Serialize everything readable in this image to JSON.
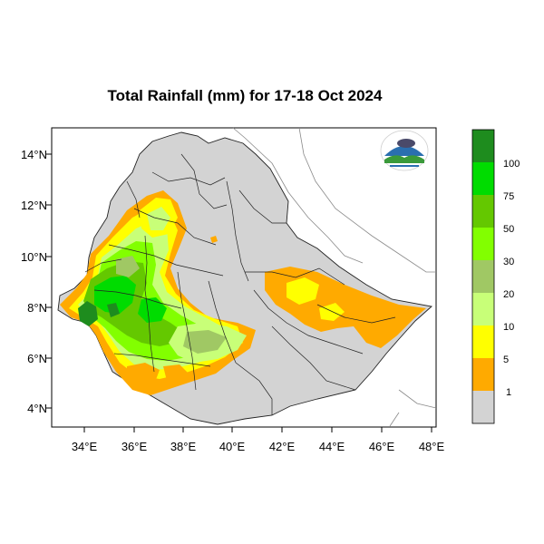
{
  "title": "Total Rainfall (mm) for 17-18 Oct 2024",
  "map": {
    "lon_ticks": [
      "34°E",
      "36°E",
      "38°E",
      "40°E",
      "42°E",
      "44°E",
      "46°E",
      "48°E"
    ],
    "lat_ticks": [
      "14°N",
      "12°N",
      "10°N",
      "8°N",
      "6°N",
      "4°N"
    ],
    "lon_range": [
      32.8,
      48.3
    ],
    "lat_range": [
      3.3,
      15.0
    ],
    "background_color": "#ffffff",
    "land_color": "#d3d3d3",
    "border_color": "#000000"
  },
  "legend": {
    "thresholds": [
      "100",
      "75",
      "50",
      "30",
      "20",
      "10",
      "5",
      "1"
    ],
    "colors": [
      "#1e8c1e",
      "#00dc00",
      "#64c800",
      "#82ff00",
      "#a0c864",
      "#c8ff78",
      "#ffff00",
      "#ffaa00",
      "#d3d3d3"
    ]
  },
  "logo": {
    "icon": "ethiopian-meteorology-institute-logo"
  }
}
